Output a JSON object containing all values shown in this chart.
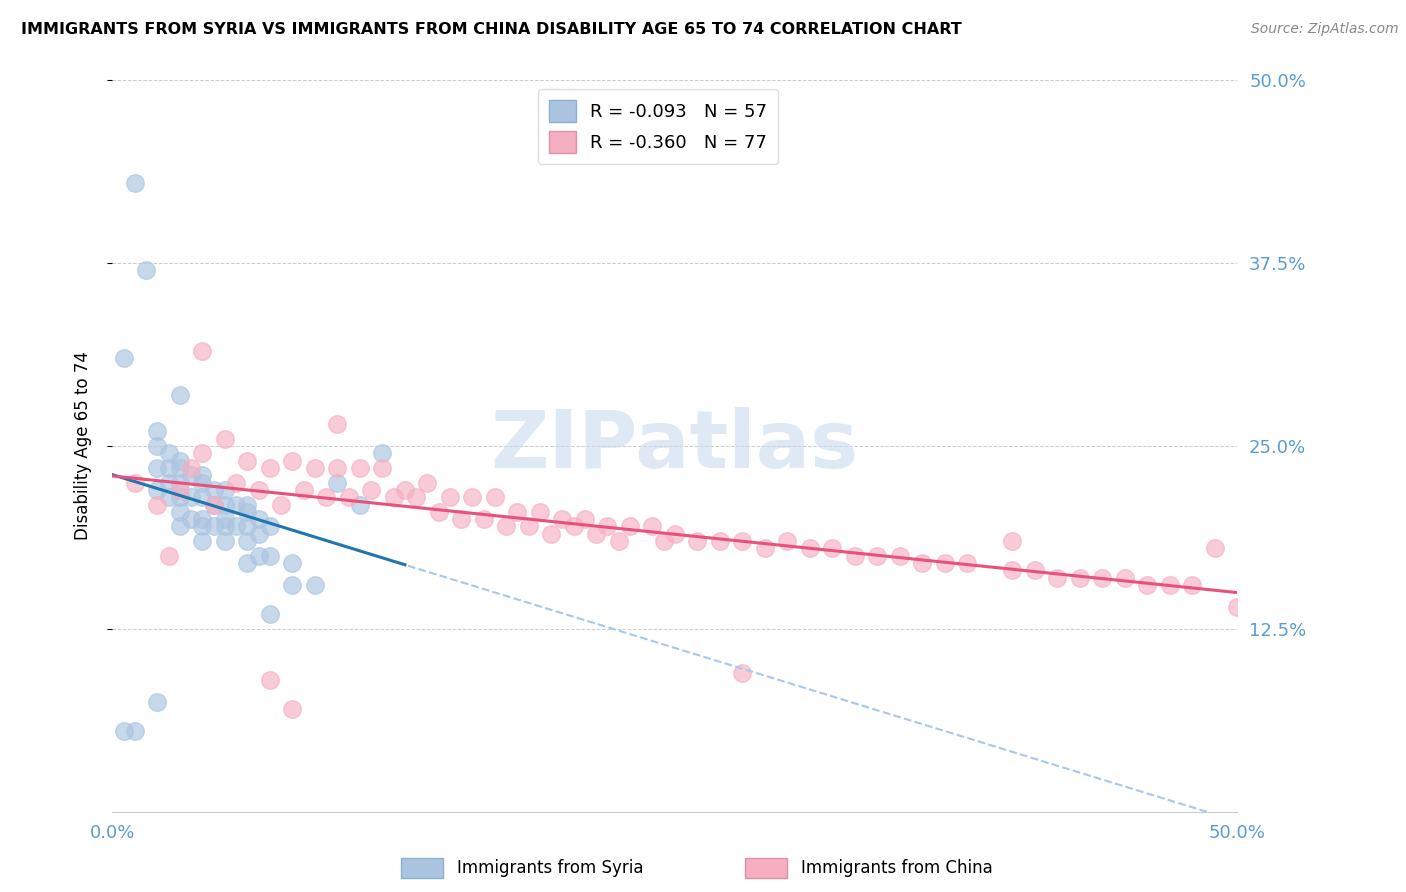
{
  "title": "IMMIGRANTS FROM SYRIA VS IMMIGRANTS FROM CHINA DISABILITY AGE 65 TO 74 CORRELATION CHART",
  "source": "Source: ZipAtlas.com",
  "ylabel": "Disability Age 65 to 74",
  "syria_color": "#aac4e0",
  "china_color": "#f5afc0",
  "syria_line_color": "#2176ae",
  "china_line_color": "#e8527a",
  "syria_dashed_color": "#a8c8e8",
  "syria_R": -0.093,
  "syria_N": 57,
  "china_R": -0.36,
  "china_N": 77,
  "watermark": "ZIPatlas",
  "xmin": 0.0,
  "xmax": 0.5,
  "ymin": 0.0,
  "ymax": 0.5,
  "yticks": [
    0.125,
    0.25,
    0.375,
    0.5
  ],
  "ytick_labels": [
    "12.5%",
    "25.0%",
    "37.5%",
    "50.0%"
  ],
  "xticks": [
    0.0,
    0.5
  ],
  "xtick_labels": [
    "0.0%",
    "50.0%"
  ],
  "syria_x": [
    0.005,
    0.01,
    0.015,
    0.02,
    0.02,
    0.02,
    0.02,
    0.025,
    0.025,
    0.025,
    0.025,
    0.03,
    0.03,
    0.03,
    0.03,
    0.03,
    0.03,
    0.035,
    0.035,
    0.035,
    0.04,
    0.04,
    0.04,
    0.04,
    0.04,
    0.04,
    0.045,
    0.045,
    0.045,
    0.05,
    0.05,
    0.05,
    0.05,
    0.05,
    0.055,
    0.055,
    0.06,
    0.06,
    0.06,
    0.06,
    0.065,
    0.065,
    0.065,
    0.07,
    0.07,
    0.08,
    0.09,
    0.1,
    0.11,
    0.12,
    0.005,
    0.01,
    0.02,
    0.03,
    0.06,
    0.07,
    0.08
  ],
  "syria_y": [
    0.31,
    0.43,
    0.37,
    0.26,
    0.25,
    0.235,
    0.22,
    0.245,
    0.235,
    0.225,
    0.215,
    0.24,
    0.235,
    0.225,
    0.215,
    0.205,
    0.195,
    0.23,
    0.215,
    0.2,
    0.23,
    0.225,
    0.215,
    0.2,
    0.195,
    0.185,
    0.22,
    0.21,
    0.195,
    0.22,
    0.21,
    0.2,
    0.195,
    0.185,
    0.21,
    0.195,
    0.21,
    0.205,
    0.195,
    0.185,
    0.2,
    0.19,
    0.175,
    0.195,
    0.175,
    0.17,
    0.155,
    0.225,
    0.21,
    0.245,
    0.055,
    0.055,
    0.075,
    0.285,
    0.17,
    0.135,
    0.155
  ],
  "china_x": [
    0.01,
    0.02,
    0.03,
    0.035,
    0.04,
    0.045,
    0.05,
    0.055,
    0.06,
    0.065,
    0.07,
    0.075,
    0.08,
    0.085,
    0.09,
    0.095,
    0.1,
    0.105,
    0.11,
    0.115,
    0.12,
    0.125,
    0.13,
    0.135,
    0.14,
    0.145,
    0.15,
    0.155,
    0.16,
    0.165,
    0.17,
    0.175,
    0.18,
    0.185,
    0.19,
    0.195,
    0.2,
    0.205,
    0.21,
    0.215,
    0.22,
    0.225,
    0.23,
    0.24,
    0.245,
    0.25,
    0.26,
    0.27,
    0.28,
    0.29,
    0.3,
    0.31,
    0.32,
    0.33,
    0.34,
    0.35,
    0.36,
    0.37,
    0.38,
    0.4,
    0.41,
    0.42,
    0.43,
    0.44,
    0.45,
    0.46,
    0.47,
    0.48,
    0.49,
    0.5,
    0.025,
    0.04,
    0.07,
    0.08,
    0.1,
    0.28,
    0.4
  ],
  "china_y": [
    0.225,
    0.21,
    0.22,
    0.235,
    0.245,
    0.21,
    0.255,
    0.225,
    0.24,
    0.22,
    0.235,
    0.21,
    0.24,
    0.22,
    0.235,
    0.215,
    0.235,
    0.215,
    0.235,
    0.22,
    0.235,
    0.215,
    0.22,
    0.215,
    0.225,
    0.205,
    0.215,
    0.2,
    0.215,
    0.2,
    0.215,
    0.195,
    0.205,
    0.195,
    0.205,
    0.19,
    0.2,
    0.195,
    0.2,
    0.19,
    0.195,
    0.185,
    0.195,
    0.195,
    0.185,
    0.19,
    0.185,
    0.185,
    0.185,
    0.18,
    0.185,
    0.18,
    0.18,
    0.175,
    0.175,
    0.175,
    0.17,
    0.17,
    0.17,
    0.165,
    0.165,
    0.16,
    0.16,
    0.16,
    0.16,
    0.155,
    0.155,
    0.155,
    0.18,
    0.14,
    0.175,
    0.315,
    0.09,
    0.07,
    0.265,
    0.095,
    0.185
  ]
}
